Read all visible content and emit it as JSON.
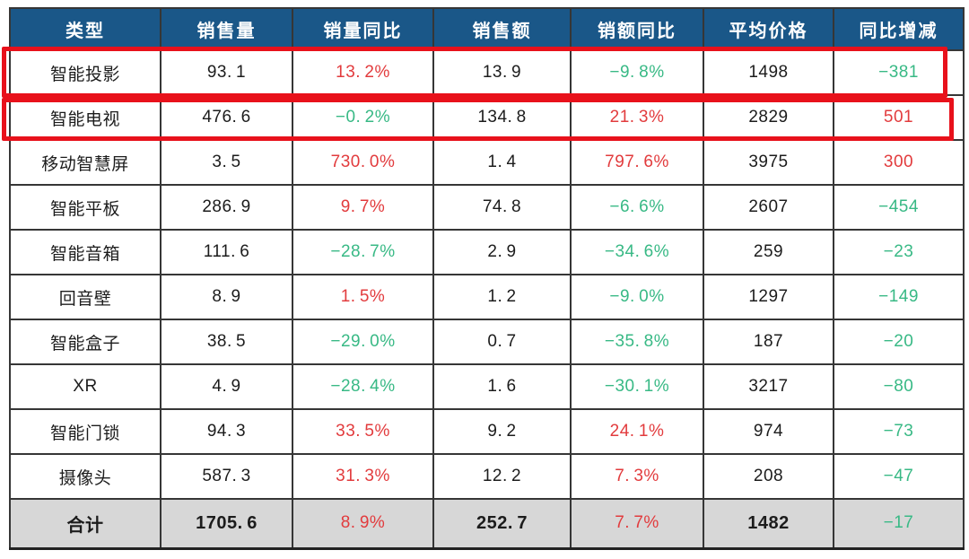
{
  "palette": {
    "page_bg": "#ffffff",
    "header_bg": "#1a5788",
    "header_text": "#ffffff",
    "body_text": "#1c1c1c",
    "increase_red": "#e23b3d",
    "decrease_green": "#38b985",
    "total_row_bg": "#d7d7d7",
    "grid_line": "#363636",
    "outer_border": "#222222",
    "highlight_box_red": "#e8111b",
    "color_convention": "red = increase, green = decrease"
  },
  "chart_data": {
    "type": "table",
    "columns": [
      "类型",
      "销售量",
      "销量同比",
      "销售额",
      "销额同比",
      "平均价格",
      "同比增减"
    ],
    "signed_color_columns": [
      2,
      4,
      6
    ],
    "rows": [
      {
        "cells": [
          "智能投影",
          "93.1",
          "13.2%",
          "13.9",
          "-9.8%",
          "1498",
          "-381"
        ],
        "highlighted": true
      },
      {
        "cells": [
          "智能电视",
          "476.6",
          "-0.2%",
          "134.8",
          "21.3%",
          "2829",
          "501"
        ],
        "highlighted": true
      },
      {
        "cells": [
          "移动智慧屏",
          "3.5",
          "730.0%",
          "1.4",
          "797.6%",
          "3975",
          "300"
        ],
        "highlighted": false
      },
      {
        "cells": [
          "智能平板",
          "286.9",
          "9.7%",
          "74.8",
          "-6.6%",
          "2607",
          "-454"
        ],
        "highlighted": false
      },
      {
        "cells": [
          "智能音箱",
          "111.6",
          "-28.7%",
          "2.9",
          "-34.6%",
          "259",
          "-23"
        ],
        "highlighted": false
      },
      {
        "cells": [
          "回音壁",
          "8.9",
          "1.5%",
          "1.2",
          "-9.0%",
          "1297",
          "-149"
        ],
        "highlighted": false
      },
      {
        "cells": [
          "智能盒子",
          "38.5",
          "-29.0%",
          "0.7",
          "-35.8%",
          "187",
          "-20"
        ],
        "highlighted": false
      },
      {
        "cells": [
          "XR",
          "4.9",
          "-28.4%",
          "1.6",
          "-30.1%",
          "3217",
          "-80"
        ],
        "highlighted": false
      },
      {
        "cells": [
          "智能门锁",
          "94.3",
          "33.5%",
          "9.2",
          "24.1%",
          "974",
          "-73"
        ],
        "highlighted": false
      },
      {
        "cells": [
          "摄像头",
          "587.3",
          "31.3%",
          "12.2",
          "7.3%",
          "208",
          "-47"
        ],
        "highlighted": false
      }
    ],
    "total_row": {
      "cells": [
        "合计",
        "1705.6",
        "8.9%",
        "252.7",
        "7.7%",
        "1482",
        "-17"
      ]
    }
  }
}
